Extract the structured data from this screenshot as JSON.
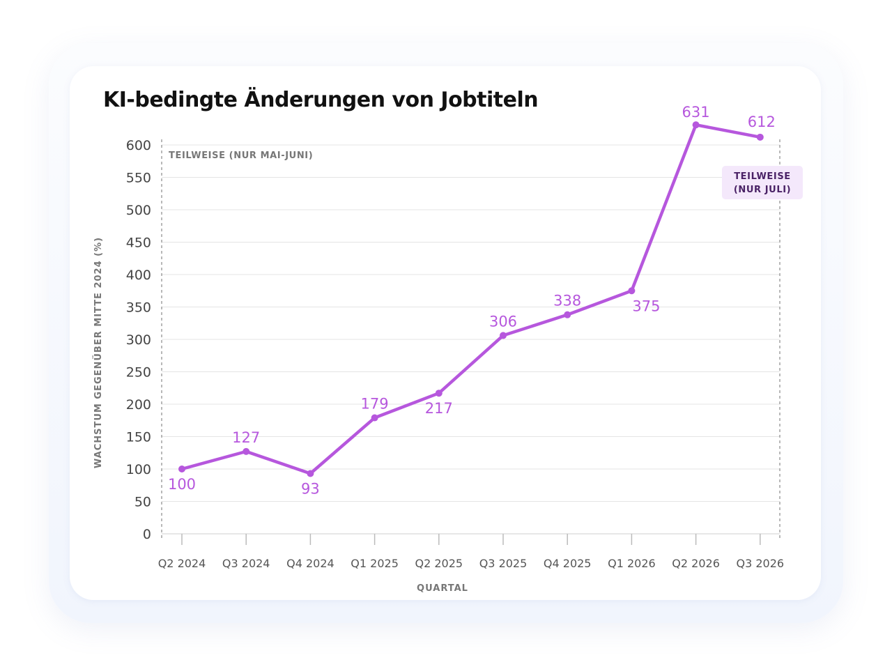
{
  "chart_data": {
    "type": "line",
    "title": "KI-bedingte Änderungen von Jobtiteln",
    "xlabel": "QUARTAL",
    "ylabel": "WACHSTUM GEGENÜBER MITTE 2024 (%)",
    "ylim": [
      0,
      600
    ],
    "yticks": [
      0,
      50,
      100,
      150,
      200,
      250,
      300,
      350,
      400,
      450,
      500,
      550,
      600
    ],
    "categories": [
      "Q2 2024",
      "Q3 2024",
      "Q4 2024",
      "Q1 2025",
      "Q2 2025",
      "Q3 2025",
      "Q4 2025",
      "Q1 2026",
      "Q2 2026",
      "Q3 2026"
    ],
    "series": [
      {
        "values": [
          100,
          127,
          93,
          179,
          217,
          306,
          338,
          375,
          631,
          612
        ],
        "color": "#b657dd"
      }
    ],
    "grid": true,
    "annotations": {
      "start_note": "TEILWEISE (NUR MAI-JUNI)",
      "end_note_line1": "TEILWEISE",
      "end_note_line2": "(NUR JULI)"
    }
  }
}
